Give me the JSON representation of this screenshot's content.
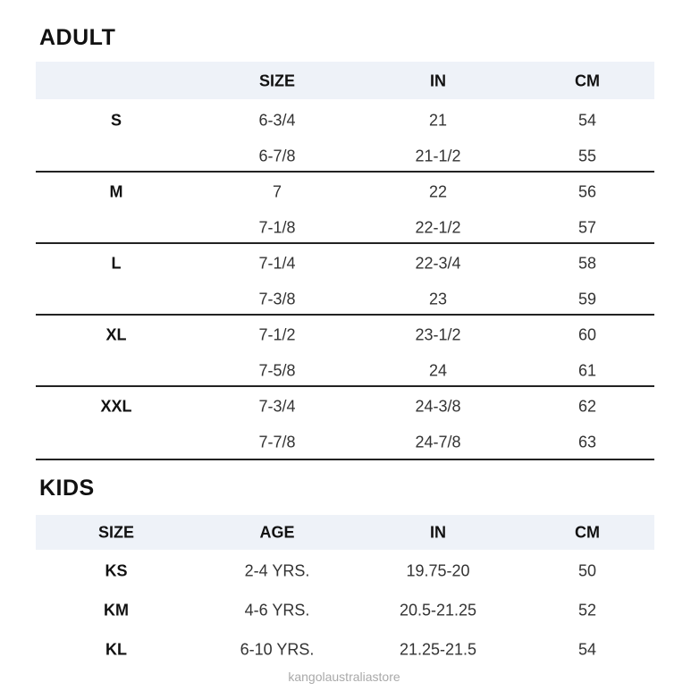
{
  "adult": {
    "title": "ADULT",
    "headers": [
      "",
      "SIZE",
      "IN",
      "CM"
    ],
    "groups": [
      {
        "size": "S",
        "rows": [
          [
            "6-3/4",
            "21",
            "54"
          ],
          [
            "6-7/8",
            "21-1/2",
            "55"
          ]
        ]
      },
      {
        "size": "M",
        "rows": [
          [
            "7",
            "22",
            "56"
          ],
          [
            "7-1/8",
            "22-1/2",
            "57"
          ]
        ]
      },
      {
        "size": "L",
        "rows": [
          [
            "7-1/4",
            "22-3/4",
            "58"
          ],
          [
            "7-3/8",
            "23",
            "59"
          ]
        ]
      },
      {
        "size": "XL",
        "rows": [
          [
            "7-1/2",
            "23-1/2",
            "60"
          ],
          [
            "7-5/8",
            "24",
            "61"
          ]
        ]
      },
      {
        "size": "XXL",
        "rows": [
          [
            "7-3/4",
            "24-3/8",
            "62"
          ],
          [
            "7-7/8",
            "24-7/8",
            "63"
          ]
        ]
      }
    ]
  },
  "kids": {
    "title": "KIDS",
    "headers": [
      "SIZE",
      "AGE",
      "IN",
      "CM"
    ],
    "rows": [
      [
        "KS",
        "2-4 YRS.",
        "19.75-20",
        "50"
      ],
      [
        "KM",
        "4-6 YRS.",
        "20.5-21.25",
        "52"
      ],
      [
        "KL",
        "6-10 YRS.",
        "21.25-21.5",
        "54"
      ]
    ]
  },
  "watermark": "kangolaustraliastore",
  "colors": {
    "header_band": "#eef2f8",
    "rule": "#222222"
  }
}
